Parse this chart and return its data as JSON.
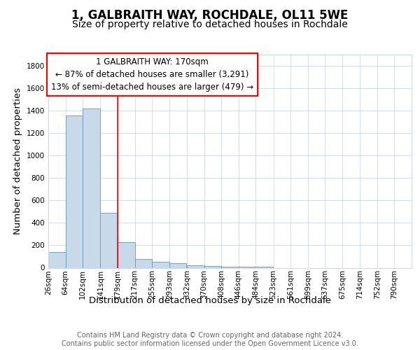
{
  "title": "1, GALBRAITH WAY, ROCHDALE, OL11 5WE",
  "subtitle": "Size of property relative to detached houses in Rochdale",
  "xlabel": "Distribution of detached houses by size in Rochdale",
  "ylabel": "Number of detached properties",
  "bins": [
    26,
    64,
    102,
    141,
    179,
    217,
    255,
    293,
    332,
    370,
    408,
    446,
    484,
    523,
    561,
    599,
    637,
    675,
    714,
    752,
    790
  ],
  "bar_heights": [
    140,
    1355,
    1420,
    490,
    230,
    80,
    50,
    40,
    20,
    15,
    10,
    10,
    10,
    0,
    0,
    0,
    0,
    0,
    0,
    0,
    0
  ],
  "bar_color": "#c8d9ea",
  "bar_edge_color": "#6699bb",
  "red_line_x": 179,
  "ylim": [
    0,
    1900
  ],
  "yticks": [
    0,
    200,
    400,
    600,
    800,
    1000,
    1200,
    1400,
    1600,
    1800
  ],
  "annotation_text": "1 GALBRAITH WAY: 170sqm\n← 87% of detached houses are smaller (3,291)\n13% of semi-detached houses are larger (479) →",
  "footer_line1": "Contains HM Land Registry data © Crown copyright and database right 2024.",
  "footer_line2": "Contains public sector information licensed under the Open Government Licence v3.0.",
  "background_color": "#ffffff",
  "grid_color": "#ccd9e3",
  "title_fontsize": 12,
  "subtitle_fontsize": 10,
  "axis_label_fontsize": 9.5,
  "tick_fontsize": 7.5,
  "annotation_fontsize": 8.5,
  "footer_fontsize": 7
}
